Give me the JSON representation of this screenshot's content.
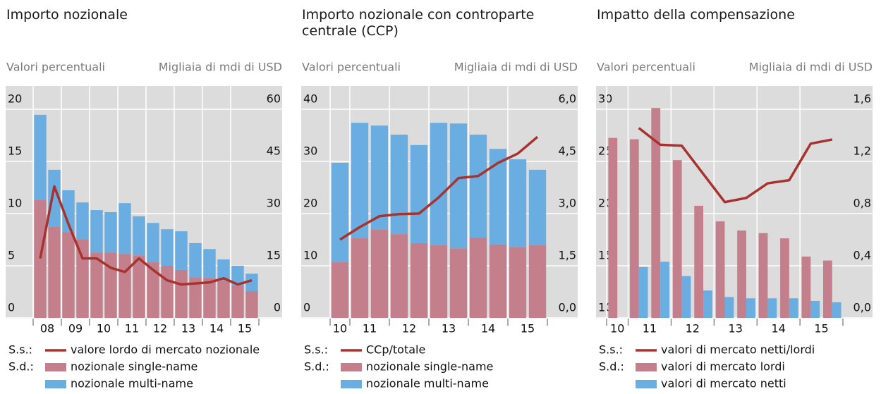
{
  "chart_data": [
    {
      "type": "bar",
      "stacked": true,
      "title": "Importo nozionale",
      "ylabel": "Valori percentuali",
      "y2label": "Migliaia di mdi di USD",
      "legend_axis_labels": {
        "y": "S.s.:",
        "y2": "S.d.:"
      },
      "categories": [
        "08",
        null,
        "09",
        null,
        "10",
        null,
        "11",
        null,
        "12",
        null,
        "13",
        null,
        "14",
        null,
        "15",
        null
      ],
      "ylim": [
        0,
        20
      ],
      "yticks": [
        0,
        5,
        10,
        15,
        20
      ],
      "y2lim": [
        0,
        60
      ],
      "y2ticks": [
        0,
        15,
        30,
        45,
        60
      ],
      "grid": true,
      "series": [
        {
          "name": "valore lordo di mercato nozionale",
          "type": "line",
          "color": "#a8322d",
          "values": [
            5.7,
            12.6,
            9.0,
            5.7,
            5.7,
            4.8,
            4.4,
            5.7,
            4.6,
            3.6,
            3.2,
            3.3,
            3.4,
            3.8,
            3.2,
            3.6
          ]
        },
        {
          "name": "nozionale single-name",
          "type": "bar",
          "axis": "y2",
          "color": "#c47f8d",
          "values": [
            34.0,
            26.3,
            24.7,
            22.5,
            18.8,
            18.8,
            18.4,
            18.0,
            16.0,
            15.0,
            13.8,
            11.7,
            11.5,
            10.7,
            9.3,
            7.7
          ]
        },
        {
          "name": "nozionale multi-name",
          "type": "bar",
          "axis": "y2",
          "color": "#6aade0",
          "values": [
            24.4,
            16.3,
            12.0,
            10.7,
            12.2,
            11.6,
            14.6,
            11.2,
            11.3,
            10.5,
            11.1,
            9.8,
            8.3,
            6.1,
            5.7,
            5.0
          ]
        }
      ]
    },
    {
      "type": "bar",
      "stacked": true,
      "title": "Importo nozionale con controparte centrale (CCP)",
      "ylabel": "Valori percentuali",
      "y2label": "Migliaia di mdi di USD",
      "legend_axis_labels": {
        "y": "S.s.:",
        "y2": "S.d.:"
      },
      "categories": [
        "10",
        "11",
        null,
        "12",
        null,
        "13",
        null,
        "14",
        null,
        "15",
        null
      ],
      "ylim": [
        0,
        40
      ],
      "yticks": [
        0,
        10,
        20,
        30,
        40
      ],
      "y2lim": [
        0,
        6
      ],
      "y2ticks": [
        {
          "value": 0,
          "label": "0,0"
        },
        {
          "value": 1.5,
          "label": "1,5"
        },
        {
          "value": 3,
          "label": "3,0"
        },
        {
          "value": 4.5,
          "label": "4,5"
        },
        {
          "value": 6,
          "label": "6,0"
        }
      ],
      "grid": true,
      "series": [
        {
          "name": "CCp/totale",
          "type": "line",
          "color": "#a8322d",
          "values": [
            15.0,
            17.4,
            19.5,
            19.9,
            20.0,
            23.1,
            26.8,
            27.2,
            29.7,
            31.5,
            34.7
          ]
        },
        {
          "name": "nozionale single-name",
          "type": "bar",
          "axis": "y2",
          "color": "#c47f8d",
          "values": [
            1.6,
            2.29,
            2.55,
            2.41,
            2.15,
            2.09,
            2.0,
            2.31,
            2.11,
            2.04,
            2.09
          ]
        },
        {
          "name": "nozionale multi-name",
          "type": "bar",
          "axis": "y2",
          "color": "#6aade0",
          "values": [
            2.86,
            3.32,
            2.98,
            2.86,
            2.82,
            3.52,
            3.59,
            2.96,
            2.75,
            2.52,
            2.17
          ]
        }
      ]
    },
    {
      "type": "bar",
      "stacked": false,
      "title": "Impatto della compensazione",
      "ylabel": "Valori percentuali",
      "y2label": "Migliaia di mdi di USD",
      "legend_axis_labels": {
        "y": "S.s.:",
        "y2": "S.d.:"
      },
      "categories": [
        "10",
        "11",
        null,
        "12",
        null,
        "13",
        null,
        "14",
        null,
        "15",
        null
      ],
      "ylim": [
        10,
        30
      ],
      "yticks": [
        10,
        15,
        20,
        25,
        30
      ],
      "y2lim": [
        0,
        1.6
      ],
      "y2ticks": [
        {
          "value": 0,
          "label": "0,0"
        },
        {
          "value": 0.4,
          "label": "0,4"
        },
        {
          "value": 0.8,
          "label": "0,8"
        },
        {
          "value": 1.2,
          "label": "1,2"
        },
        {
          "value": 1.6,
          "label": "1,6"
        }
      ],
      "grid": true,
      "series": [
        {
          "name": "valori di mercato netti/lordi",
          "type": "line",
          "color": "#a8322d",
          "values": [
            null,
            28.2,
            26.6,
            26.5,
            23.8,
            21.1,
            21.5,
            22.9,
            23.2,
            26.7,
            27.1
          ]
        },
        {
          "name": "valori di mercato lordi",
          "type": "bar",
          "axis": "y2",
          "color": "#c47f8d",
          "values": [
            1.38,
            1.37,
            1.61,
            1.21,
            0.86,
            0.74,
            0.67,
            0.65,
            0.61,
            0.47,
            0.44
          ]
        },
        {
          "name": "valori di mercato netti",
          "type": "bar",
          "axis": "y2",
          "color": "#6aade0",
          "values": [
            null,
            0.39,
            0.43,
            0.32,
            0.21,
            0.16,
            0.15,
            0.15,
            0.15,
            0.13,
            0.12
          ]
        }
      ]
    }
  ]
}
